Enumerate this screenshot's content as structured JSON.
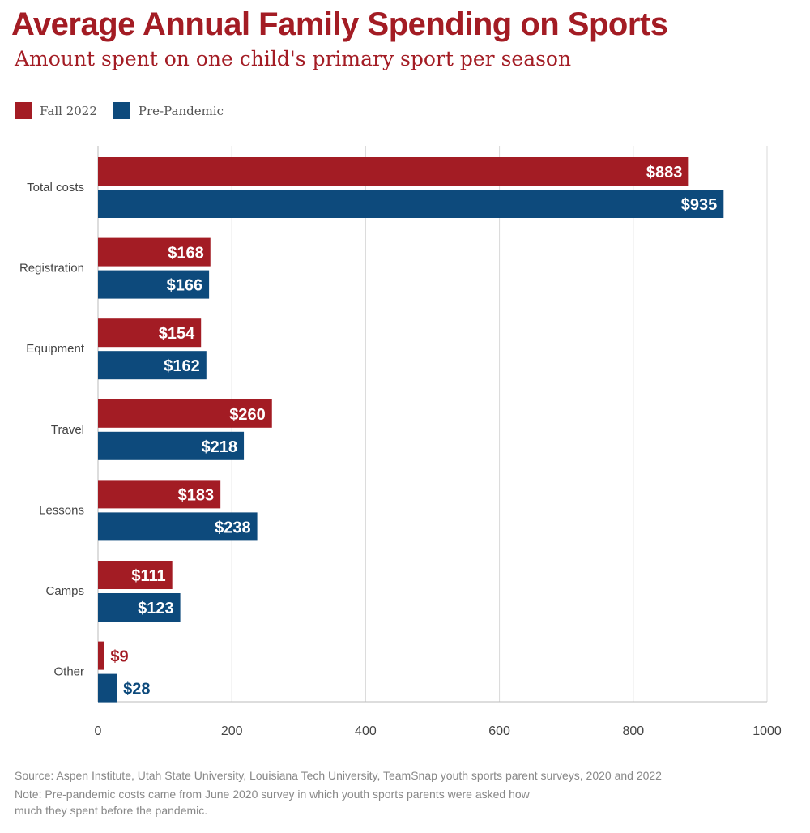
{
  "title": "Average Annual Family Spending on Sports",
  "subtitle": "Amount spent on one child's primary sport per season",
  "colors": {
    "fall_2022": "#a31c24",
    "pre_pandemic": "#0d4a7c"
  },
  "chart_data": {
    "type": "bar",
    "orientation": "horizontal",
    "categories": [
      "Total costs",
      "Registration",
      "Equipment",
      "Travel",
      "Lessons",
      "Camps",
      "Other"
    ],
    "series": [
      {
        "name": "Fall 2022",
        "values": [
          883,
          168,
          154,
          260,
          183,
          111,
          9
        ],
        "labels": [
          "$883",
          "$168",
          "$154",
          "$260",
          "$183",
          "$111",
          "$9"
        ]
      },
      {
        "name": "Pre-Pandemic",
        "values": [
          935,
          166,
          162,
          218,
          238,
          123,
          28
        ],
        "labels": [
          "$935",
          "$166",
          "$162",
          "$218",
          "$238",
          "$123",
          "$28"
        ]
      }
    ],
    "xlim": [
      0,
      1000
    ],
    "xticks": [
      "0",
      "200",
      "400",
      "600",
      "800",
      "1000"
    ],
    "grid": true,
    "legend": "top-left"
  },
  "footer": {
    "source": "Source: Aspen Institute, Utah State University, Louisiana Tech University, TeamSnap youth sports parent surveys, 2020 and 2022",
    "note_line1": "Note: Pre-pandemic costs came from June 2020 survey in which youth sports parents were asked how",
    "note_line2": "much they spent before the pandemic."
  }
}
